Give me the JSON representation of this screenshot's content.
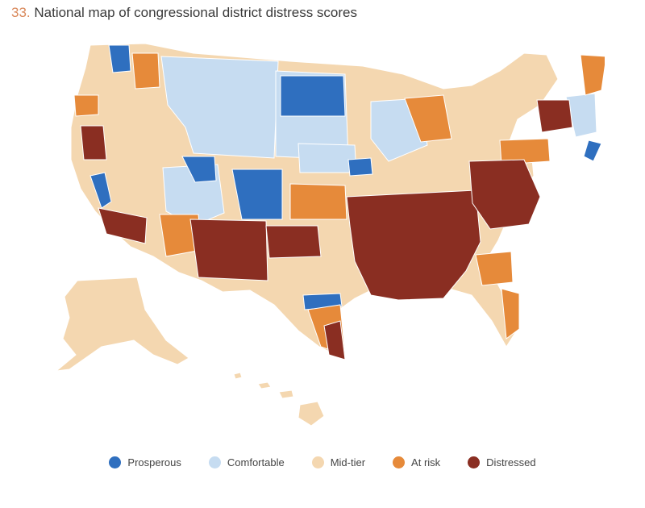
{
  "figure": {
    "number": "33.",
    "title": "National map of congressional district distress scores"
  },
  "colors": {
    "prosperous": "#2f6fbf",
    "comfortable": "#c6dcf1",
    "mid_tier": "#f4d7b0",
    "at_risk": "#e68a3a",
    "distressed": "#8a2e22"
  },
  "legend": [
    {
      "label": "Prosperous",
      "color_key": "prosperous"
    },
    {
      "label": "Comfortable",
      "color_key": "comfortable"
    },
    {
      "label": "Mid-tier",
      "color_key": "mid_tier"
    },
    {
      "label": "At risk",
      "color_key": "at_risk"
    },
    {
      "label": "Distressed",
      "color_key": "distressed"
    }
  ]
}
